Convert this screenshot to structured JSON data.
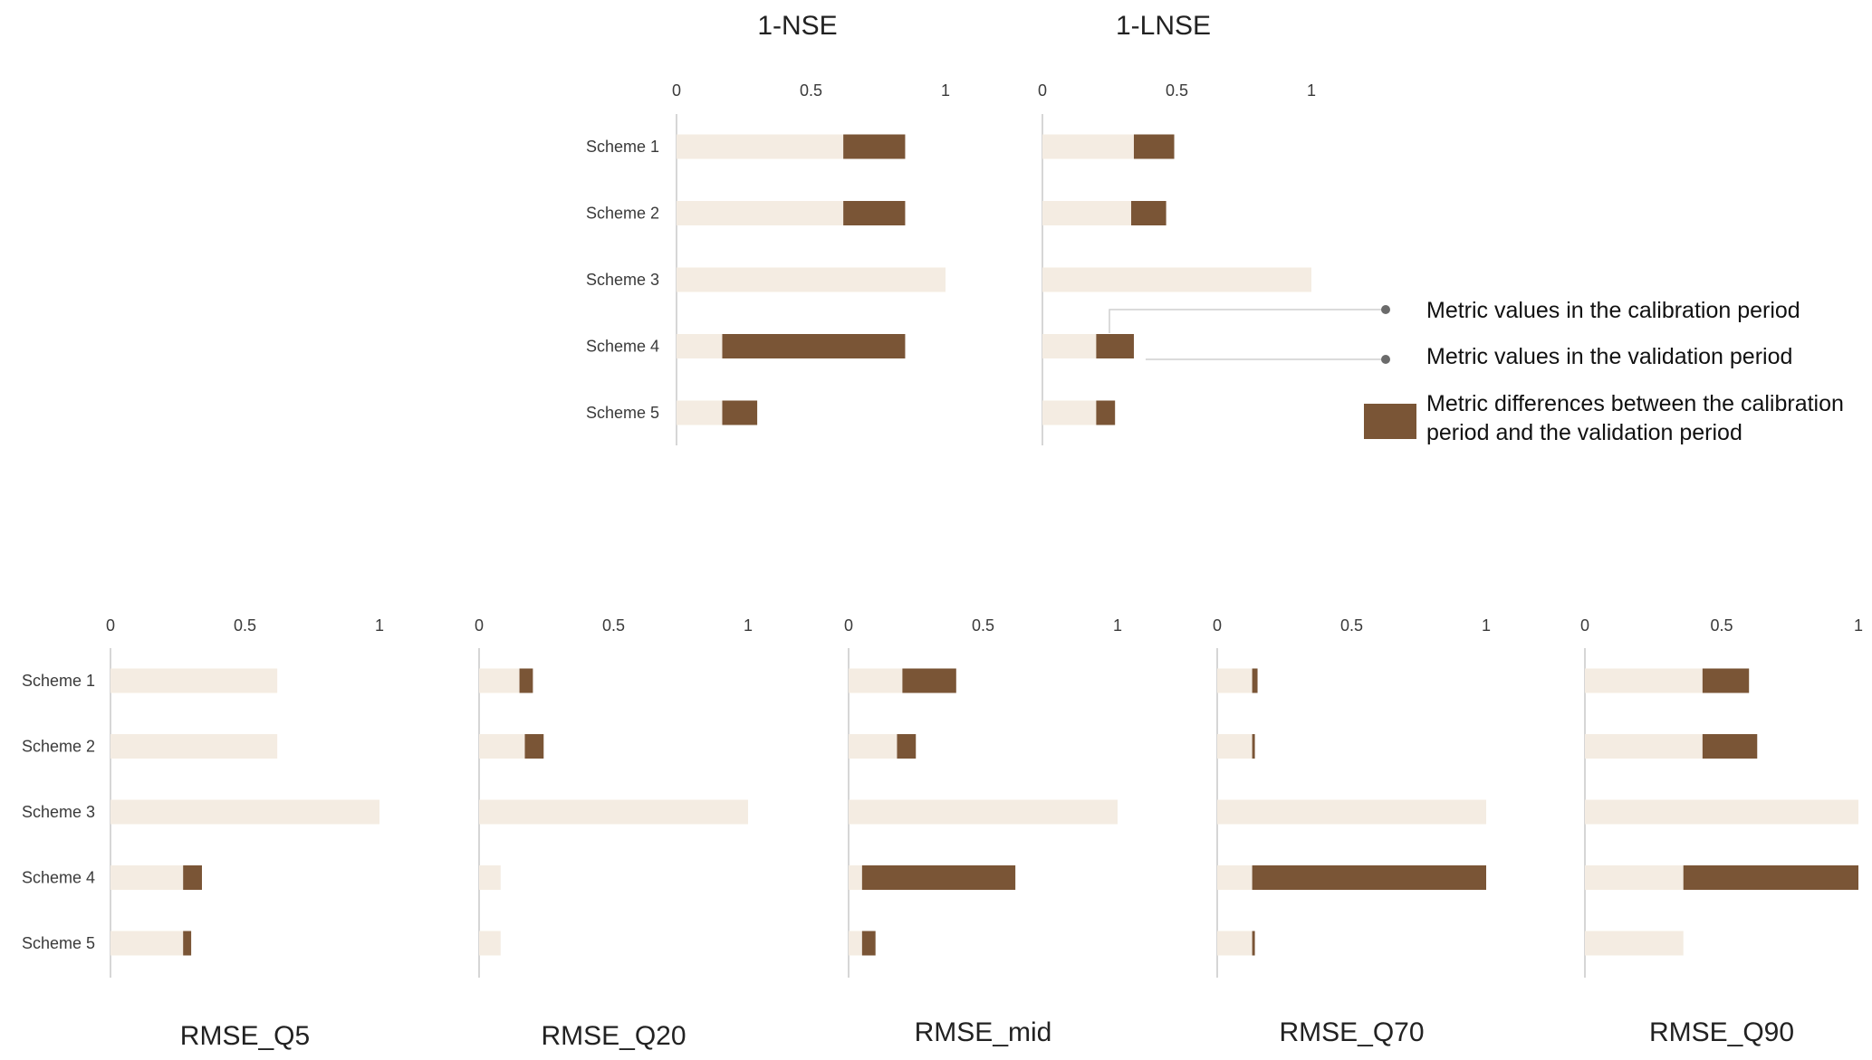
{
  "colors": {
    "calibration": "#f4ece2",
    "validation_diff": "#7a5536",
    "axis": "#d6d6d6",
    "tick_text": "#3a3a3a",
    "legend_dot": "#6b6b6b",
    "leader": "#cfcfcf",
    "title_text": "#222222"
  },
  "legend": {
    "calibration": "Metric values in the calibration period",
    "validation": "Metric values in the validation period",
    "difference_line1": "Metric differences between the calibration",
    "difference_line2": "period and the validation period"
  },
  "chart_data": [
    {
      "type": "bar",
      "title": "1-NSE",
      "categories": [
        "Scheme 1",
        "Scheme 2",
        "Scheme 3",
        "Scheme 4",
        "Scheme 5"
      ],
      "series": [
        {
          "name": "Metric values in the calibration period",
          "values": [
            0.62,
            0.62,
            1.0,
            0.17,
            0.17
          ]
        },
        {
          "name": "Metric values in the validation period",
          "values": [
            0.85,
            0.85,
            1.0,
            0.85,
            0.3
          ]
        }
      ],
      "xlim": [
        0,
        1
      ],
      "xticks": [
        "0",
        "0.5",
        "1"
      ]
    },
    {
      "type": "bar",
      "title": "1-LNSE",
      "categories": [
        "Scheme 1",
        "Scheme 2",
        "Scheme 3",
        "Scheme 4",
        "Scheme 5"
      ],
      "series": [
        {
          "name": "Metric values in the calibration period",
          "values": [
            0.34,
            0.33,
            1.0,
            0.2,
            0.2
          ]
        },
        {
          "name": "Metric values in the validation period",
          "values": [
            0.49,
            0.46,
            1.0,
            0.34,
            0.27
          ]
        }
      ],
      "xlim": [
        0,
        1
      ],
      "xticks": [
        "0",
        "0.5",
        "1"
      ]
    },
    {
      "type": "bar",
      "title": "RMSE_Q5",
      "categories": [
        "Scheme 1",
        "Scheme 2",
        "Scheme 3",
        "Scheme 4",
        "Scheme 5"
      ],
      "series": [
        {
          "name": "Metric values in the calibration period",
          "values": [
            0.62,
            0.62,
            1.0,
            0.27,
            0.27
          ]
        },
        {
          "name": "Metric values in the validation period",
          "values": [
            0.62,
            0.62,
            1.0,
            0.34,
            0.3
          ]
        }
      ],
      "xlim": [
        0,
        1
      ],
      "xticks": [
        "0",
        "0.5",
        "1"
      ]
    },
    {
      "type": "bar",
      "title": "RMSE_Q20",
      "categories": [
        "Scheme 1",
        "Scheme 2",
        "Scheme 3",
        "Scheme 4",
        "Scheme 5"
      ],
      "series": [
        {
          "name": "Metric values in the calibration period",
          "values": [
            0.15,
            0.17,
            1.0,
            0.08,
            0.08
          ]
        },
        {
          "name": "Metric values in the validation period",
          "values": [
            0.2,
            0.24,
            1.0,
            0.08,
            0.08
          ]
        }
      ],
      "xlim": [
        0,
        1
      ],
      "xticks": [
        "0",
        "0.5",
        "1"
      ]
    },
    {
      "type": "bar",
      "title": "RMSE_mid",
      "categories": [
        "Scheme 1",
        "Scheme 2",
        "Scheme 3",
        "Scheme 4",
        "Scheme 5"
      ],
      "series": [
        {
          "name": "Metric values in the calibration period",
          "values": [
            0.2,
            0.18,
            1.0,
            0.05,
            0.05
          ]
        },
        {
          "name": "Metric values in the validation period",
          "values": [
            0.4,
            0.25,
            1.0,
            0.62,
            0.1
          ]
        }
      ],
      "xlim": [
        0,
        1
      ],
      "xticks": [
        "0",
        "0.5",
        "1"
      ]
    },
    {
      "type": "bar",
      "title": "RMSE_Q70",
      "categories": [
        "Scheme 1",
        "Scheme 2",
        "Scheme 3",
        "Scheme 4",
        "Scheme 5"
      ],
      "series": [
        {
          "name": "Metric values in the calibration period",
          "values": [
            0.13,
            0.13,
            1.0,
            0.13,
            0.13
          ]
        },
        {
          "name": "Metric values in the validation period",
          "values": [
            0.15,
            0.14,
            1.0,
            1.0,
            0.14
          ]
        }
      ],
      "xlim": [
        0,
        1
      ],
      "xticks": [
        "0",
        "0.5",
        "1"
      ]
    },
    {
      "type": "bar",
      "title": "RMSE_Q90",
      "categories": [
        "Scheme 1",
        "Scheme 2",
        "Scheme 3",
        "Scheme 4",
        "Scheme 5"
      ],
      "series": [
        {
          "name": "Metric values in the calibration period",
          "values": [
            0.43,
            0.43,
            1.0,
            0.36,
            0.36
          ]
        },
        {
          "name": "Metric values in the validation period",
          "values": [
            0.6,
            0.63,
            1.0,
            1.0,
            0.36
          ]
        }
      ],
      "xlim": [
        0,
        1
      ],
      "xticks": [
        "0",
        "0.5",
        "1"
      ]
    }
  ]
}
